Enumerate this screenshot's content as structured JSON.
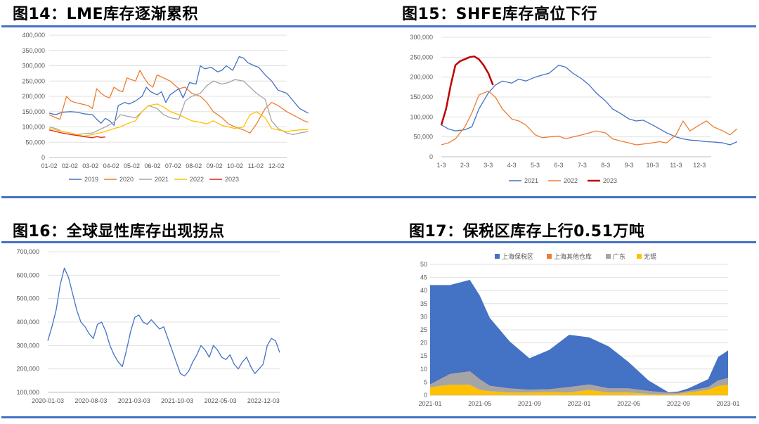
{
  "panels": [
    {
      "title": "图14：LME库存逐渐累积"
    },
    {
      "title": "图15：SHFE库存高位下行"
    },
    {
      "title": "图16：全球显性库存出现拐点"
    },
    {
      "title": "图17：保税区库存上行0.51万吨"
    }
  ],
  "chart_data": [
    {
      "type": "line",
      "x_ticks": [
        "01-02",
        "02-02",
        "03-02",
        "04-02",
        "05-02",
        "06-02",
        "07-02",
        "08-02",
        "09-02",
        "10-02",
        "11-02",
        "12-02"
      ],
      "y_ticks": [
        "0",
        "50,000",
        "100,000",
        "150,000",
        "200,000",
        "250,000",
        "300,000",
        "350,000",
        "400,000"
      ],
      "ylim": [
        0,
        400000
      ],
      "legend_position": "bottom",
      "grid": true,
      "series": [
        {
          "name": "2019",
          "color": "#4472c4",
          "x": [
            0,
            0.3,
            0.6,
            1,
            1.3,
            1.6,
            2,
            2.2,
            2.4,
            2.6,
            2.8,
            3,
            3.2,
            3.5,
            3.7,
            4,
            4.3,
            4.5,
            4.7,
            5,
            5.2,
            5.4,
            5.6,
            6,
            6.2,
            6.5,
            6.8,
            7,
            7.2,
            7.5,
            7.8,
            8,
            8.2,
            8.5,
            8.8,
            9,
            9.2,
            9.5,
            9.7,
            10,
            10.3,
            10.6,
            11,
            11.3,
            11.6,
            12
          ],
          "y": [
            145000,
            140000,
            148000,
            150000,
            148000,
            143000,
            140000,
            125000,
            112000,
            128000,
            120000,
            105000,
            170000,
            180000,
            175000,
            185000,
            200000,
            230000,
            215000,
            205000,
            215000,
            180000,
            205000,
            225000,
            195000,
            245000,
            240000,
            300000,
            290000,
            295000,
            280000,
            285000,
            300000,
            285000,
            330000,
            325000,
            310000,
            300000,
            295000,
            270000,
            250000,
            220000,
            210000,
            185000,
            160000,
            145000
          ]
        },
        {
          "name": "2020",
          "color": "#ed7d31",
          "x": [
            0,
            0.3,
            0.5,
            0.8,
            1,
            1.2,
            1.5,
            1.8,
            2,
            2.2,
            2.4,
            2.6,
            2.8,
            3,
            3.2,
            3.4,
            3.6,
            3.8,
            4,
            4.2,
            4.4,
            4.6,
            4.8,
            5,
            5.3,
            5.6,
            6,
            6.3,
            6.6,
            7,
            7.3,
            7.6,
            8,
            8.3,
            8.6,
            9,
            9.3,
            9.6,
            10,
            10.3,
            10.6,
            11,
            11.4,
            11.8,
            12
          ],
          "y": [
            140000,
            130000,
            125000,
            200000,
            185000,
            180000,
            175000,
            170000,
            160000,
            225000,
            210000,
            200000,
            195000,
            230000,
            220000,
            215000,
            260000,
            255000,
            250000,
            285000,
            260000,
            240000,
            230000,
            270000,
            260000,
            250000,
            225000,
            230000,
            210000,
            200000,
            180000,
            150000,
            130000,
            110000,
            100000,
            90000,
            80000,
            110000,
            160000,
            180000,
            170000,
            150000,
            135000,
            120000,
            115000
          ]
        },
        {
          "name": "2021",
          "color": "#a5a5a5",
          "x": [
            0,
            0.3,
            0.6,
            1,
            1.3,
            1.6,
            2,
            2.3,
            2.6,
            3,
            3.3,
            3.6,
            4,
            4.3,
            4.6,
            5,
            5.3,
            5.6,
            6,
            6.3,
            6.6,
            7,
            7.3,
            7.6,
            8,
            8.3,
            8.6,
            9,
            9.3,
            9.6,
            10,
            10.3,
            10.6,
            11,
            11.3,
            11.6,
            12
          ],
          "y": [
            100000,
            95000,
            85000,
            80000,
            75000,
            78000,
            80000,
            90000,
            100000,
            115000,
            140000,
            135000,
            130000,
            150000,
            170000,
            160000,
            140000,
            130000,
            125000,
            185000,
            200000,
            210000,
            235000,
            250000,
            240000,
            245000,
            255000,
            250000,
            230000,
            210000,
            190000,
            120000,
            95000,
            80000,
            75000,
            80000,
            85000
          ]
        },
        {
          "name": "2022",
          "color": "#ffc000",
          "x": [
            0,
            0.3,
            0.6,
            1,
            1.3,
            1.6,
            2,
            2.3,
            2.6,
            3,
            3.3,
            3.6,
            4,
            4.3,
            4.6,
            5,
            5.3,
            5.6,
            6,
            6.3,
            6.6,
            7,
            7.3,
            7.6,
            8,
            8.3,
            8.6,
            9,
            9.3,
            9.6,
            10,
            10.3,
            10.6,
            11,
            11.3,
            11.6,
            12
          ],
          "y": [
            95000,
            90000,
            85000,
            80000,
            75000,
            70000,
            75000,
            80000,
            85000,
            95000,
            100000,
            110000,
            120000,
            150000,
            170000,
            175000,
            165000,
            150000,
            140000,
            130000,
            120000,
            115000,
            110000,
            120000,
            105000,
            100000,
            95000,
            100000,
            140000,
            150000,
            130000,
            95000,
            90000,
            85000,
            88000,
            90000,
            92000
          ]
        },
        {
          "name": "2023",
          "color": "#e0201c",
          "x": [
            0,
            0.3,
            0.6,
            1,
            1.3,
            1.6,
            2,
            2.2,
            2.4,
            2.6
          ],
          "y": [
            90000,
            85000,
            80000,
            75000,
            72000,
            68000,
            65000,
            68000,
            66000,
            67000
          ]
        }
      ]
    },
    {
      "type": "line",
      "x_ticks": [
        "1-3",
        "2-3",
        "3-3",
        "4-3",
        "5-3",
        "6-3",
        "7-3",
        "8-3",
        "9-3",
        "10-3",
        "11-3",
        "12-3"
      ],
      "y_ticks": [
        "0",
        "50,000",
        "100,000",
        "150,000",
        "200,000",
        "250,000",
        "300,000"
      ],
      "ylim": [
        0,
        300000
      ],
      "legend_position": "bottom",
      "grid": true,
      "series": [
        {
          "name": "2021",
          "color": "#4472c4",
          "x": [
            0,
            0.3,
            0.6,
            1,
            1.3,
            1.6,
            2,
            2.3,
            2.6,
            3,
            3.3,
            3.6,
            4,
            4.3,
            4.6,
            5,
            5.3,
            5.6,
            6,
            6.3,
            6.6,
            7,
            7.3,
            7.6,
            8,
            8.3,
            8.6,
            9,
            9.3,
            9.6,
            10,
            10.3,
            10.6,
            11,
            11.3,
            11.6,
            12,
            12.3,
            12.6
          ],
          "y": [
            80000,
            70000,
            65000,
            68000,
            75000,
            120000,
            160000,
            180000,
            190000,
            185000,
            195000,
            190000,
            200000,
            205000,
            210000,
            230000,
            225000,
            210000,
            195000,
            180000,
            160000,
            140000,
            120000,
            110000,
            95000,
            90000,
            92000,
            80000,
            70000,
            60000,
            50000,
            45000,
            42000,
            40000,
            38000,
            37000,
            35000,
            30000,
            38000
          ]
        },
        {
          "name": "2022",
          "color": "#ed7d31",
          "x": [
            0,
            0.3,
            0.6,
            1,
            1.3,
            1.6,
            2,
            2.3,
            2.6,
            3,
            3.3,
            3.6,
            4,
            4.3,
            4.6,
            5,
            5.3,
            5.6,
            6,
            6.3,
            6.6,
            7,
            7.3,
            7.6,
            8,
            8.3,
            8.6,
            9,
            9.3,
            9.6,
            10,
            10.3,
            10.6,
            11,
            11.3,
            11.6,
            12,
            12.3,
            12.6
          ],
          "y": [
            30000,
            35000,
            45000,
            75000,
            110000,
            155000,
            165000,
            150000,
            120000,
            95000,
            90000,
            80000,
            55000,
            48000,
            50000,
            52000,
            45000,
            50000,
            55000,
            60000,
            65000,
            60000,
            45000,
            40000,
            35000,
            30000,
            32000,
            35000,
            38000,
            35000,
            55000,
            90000,
            65000,
            80000,
            90000,
            75000,
            65000,
            55000,
            70000
          ]
        },
        {
          "name": "2023",
          "color": "#c00000",
          "x": [
            0,
            0.2,
            0.4,
            0.6,
            0.8,
            1,
            1.2,
            1.4,
            1.6,
            1.8,
            2,
            2.2
          ],
          "y": [
            80000,
            120000,
            180000,
            230000,
            240000,
            245000,
            250000,
            252000,
            245000,
            230000,
            210000,
            180000
          ]
        }
      ]
    },
    {
      "type": "line",
      "x_ticks": [
        "2020-01-03",
        "2020-08-03",
        "2021-03-03",
        "2021-10-03",
        "2022-05-03",
        "2022-12-03"
      ],
      "y_ticks": [
        "100,000",
        "200,000",
        "300,000",
        "400,000",
        "500,000",
        "600,000",
        "700,000"
      ],
      "ylim": [
        100000,
        700000
      ],
      "grid": true,
      "series": [
        {
          "color": "#4472c4",
          "x": [
            0,
            0.1,
            0.2,
            0.3,
            0.4,
            0.5,
            0.6,
            0.7,
            0.8,
            0.9,
            1,
            1.1,
            1.2,
            1.3,
            1.4,
            1.5,
            1.6,
            1.7,
            1.8,
            1.9,
            2,
            2.1,
            2.2,
            2.3,
            2.4,
            2.5,
            2.6,
            2.7,
            2.8,
            2.9,
            3,
            3.1,
            3.2,
            3.3,
            3.4,
            3.5,
            3.6,
            3.7,
            3.8,
            3.9,
            4,
            4.1,
            4.2,
            4.3,
            4.4,
            4.5,
            4.6,
            4.7,
            4.8,
            4.9,
            5,
            5.1,
            5.2,
            5.3,
            5.4,
            5.5,
            5.6
          ],
          "y": [
            320000,
            380000,
            450000,
            560000,
            630000,
            590000,
            520000,
            450000,
            400000,
            380000,
            350000,
            330000,
            390000,
            400000,
            360000,
            300000,
            260000,
            230000,
            210000,
            280000,
            360000,
            420000,
            430000,
            400000,
            390000,
            410000,
            390000,
            370000,
            380000,
            330000,
            280000,
            230000,
            180000,
            170000,
            190000,
            230000,
            260000,
            300000,
            280000,
            250000,
            300000,
            280000,
            250000,
            240000,
            260000,
            220000,
            200000,
            230000,
            250000,
            210000,
            180000,
            200000,
            220000,
            300000,
            330000,
            320000,
            270000
          ]
        }
      ]
    },
    {
      "type": "area",
      "x_ticks": [
        "2021-01",
        "2021-05",
        "2021-09",
        "2022-01",
        "2022-05",
        "2022-09",
        "2023-01"
      ],
      "y_ticks": [
        "0",
        "5",
        "10",
        "15",
        "20",
        "25",
        "30",
        "35",
        "40",
        "45",
        "50"
      ],
      "ylim": [
        0,
        50
      ],
      "legend_position": "top",
      "grid": true,
      "stacked": true,
      "series": [
        {
          "name": "无锡",
          "color": "#ffc000",
          "x": [
            0,
            2,
            4,
            5,
            6,
            8,
            10,
            12,
            14,
            16,
            18,
            20,
            22,
            24,
            25,
            26,
            28,
            29,
            30
          ],
          "y": [
            3,
            4,
            4,
            2,
            1.5,
            1,
            1,
            1.2,
            1,
            2,
            1,
            1,
            0.5,
            0.3,
            0.5,
            1,
            2,
            3.5,
            4
          ]
        },
        {
          "name": "广东",
          "color": "#a5a5a5",
          "x": [
            0,
            2,
            4,
            5,
            6,
            8,
            10,
            12,
            14,
            16,
            18,
            20,
            22,
            24,
            25,
            26,
            28,
            29,
            30
          ],
          "y": [
            1,
            4,
            5,
            4,
            2,
            1.5,
            1,
            1,
            2,
            2,
            1.5,
            1.5,
            1,
            0.5,
            0.3,
            0.5,
            1,
            2,
            2.5
          ]
        },
        {
          "name": "上海其他仓库",
          "color": "#ed7d31",
          "x": [
            0,
            2,
            4,
            5,
            6,
            8,
            10,
            12,
            14,
            16,
            18,
            20,
            22,
            24,
            25,
            26,
            28,
            29,
            30
          ],
          "y": [
            0.1,
            0.1,
            0.1,
            0.1,
            0.1,
            0.1,
            0.1,
            0.1,
            0.1,
            0.1,
            0.1,
            0.1,
            0.1,
            0.1,
            0.1,
            0.1,
            0.1,
            0.1,
            0.1
          ]
        },
        {
          "name": "上海保税区",
          "color": "#4472c4",
          "x": [
            0,
            2,
            4,
            5,
            6,
            8,
            10,
            12,
            14,
            16,
            18,
            20,
            22,
            24,
            25,
            26,
            28,
            29,
            30
          ],
          "y": [
            38,
            34,
            35,
            32,
            26,
            18,
            12,
            15,
            20,
            18,
            16,
            10,
            4,
            0.2,
            0.5,
            1,
            3,
            9,
            10.5
          ]
        }
      ]
    }
  ]
}
